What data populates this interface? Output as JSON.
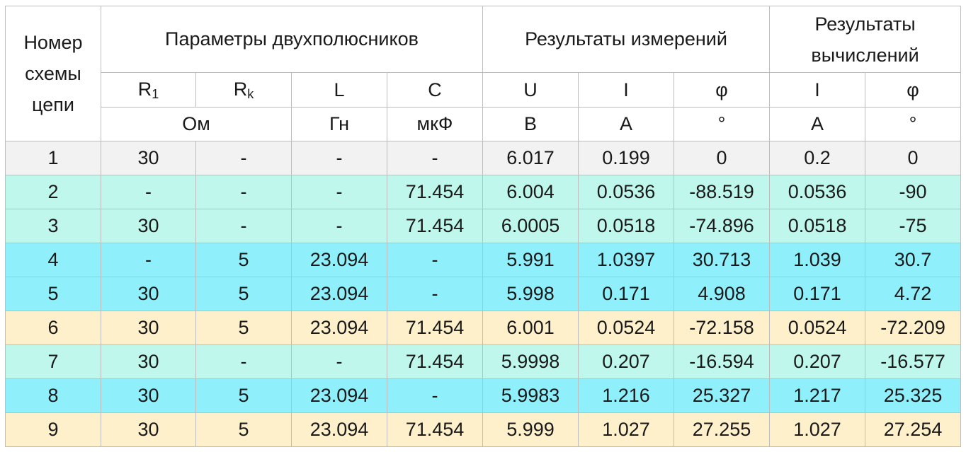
{
  "header": {
    "scheme_number": "Номер схемы цепи",
    "group_params": "Параметры двухполюсников",
    "group_measured": "Результаты измерений",
    "group_calculated": "Результаты вычислений",
    "col_r1_base": "R",
    "col_r1_sub": "1",
    "col_rk_base": "R",
    "col_rk_sub": "k",
    "col_l": "L",
    "col_c": "C",
    "col_u": "U",
    "col_i_meas": "I",
    "col_phi_meas": "φ",
    "col_i_calc": "I",
    "col_phi_calc": "φ",
    "unit_ohm": "Ом",
    "unit_l": "Гн",
    "unit_c": "мкФ",
    "unit_u": "В",
    "unit_i_meas": "А",
    "unit_phi_meas": "°",
    "unit_i_calc": "А",
    "unit_phi_calc": "°"
  },
  "row_colors": {
    "grey": "#f2f2f2",
    "mint": "#bff7ec",
    "cyan": "#8ff0fb",
    "cream": "#fff0cc"
  },
  "rows": [
    {
      "n": "1",
      "r1": "30",
      "rk": "-",
      "l": "-",
      "c": "-",
      "u": "6.017",
      "i_meas": "0.199",
      "phi_meas": "0",
      "i_calc": "0.2",
      "phi_calc": "0"
    },
    {
      "n": "2",
      "r1": "-",
      "rk": "-",
      "l": "-",
      "c": "71.454",
      "u": "6.004",
      "i_meas": "0.0536",
      "phi_meas": "-88.519",
      "i_calc": "0.0536",
      "phi_calc": "-90"
    },
    {
      "n": "3",
      "r1": "30",
      "rk": "-",
      "l": "-",
      "c": "71.454",
      "u": "6.0005",
      "i_meas": "0.0518",
      "phi_meas": "-74.896",
      "i_calc": "0.0518",
      "phi_calc": "-75"
    },
    {
      "n": "4",
      "r1": "-",
      "rk": "5",
      "l": "23.094",
      "c": "-",
      "u": "5.991",
      "i_meas": "1.0397",
      "phi_meas": "30.713",
      "i_calc": "1.039",
      "phi_calc": "30.7"
    },
    {
      "n": "5",
      "r1": "30",
      "rk": "5",
      "l": "23.094",
      "c": "-",
      "u": "5.998",
      "i_meas": "0.171",
      "phi_meas": "4.908",
      "i_calc": "0.171",
      "phi_calc": "4.72"
    },
    {
      "n": "6",
      "r1": "30",
      "rk": "5",
      "l": "23.094",
      "c": "71.454",
      "u": "6.001",
      "i_meas": "0.0524",
      "phi_meas": "-72.158",
      "i_calc": "0.0524",
      "phi_calc": "-72.209"
    },
    {
      "n": "7",
      "r1": "30",
      "rk": "-",
      "l": "-",
      "c": "71.454",
      "u": "5.9998",
      "i_meas": "0.207",
      "phi_meas": "-16.594",
      "i_calc": "0.207",
      "phi_calc": "-16.577"
    },
    {
      "n": "8",
      "r1": "30",
      "rk": "5",
      "l": "23.094",
      "c": "-",
      "u": "5.9983",
      "i_meas": "1.216",
      "phi_meas": "25.327",
      "i_calc": "1.217",
      "phi_calc": "25.325"
    },
    {
      "n": "9",
      "r1": "30",
      "rk": "5",
      "l": "23.094",
      "c": "71.454",
      "u": "5.999",
      "i_meas": "1.027",
      "phi_meas": "27.255",
      "i_calc": "1.027",
      "phi_calc": "27.254"
    }
  ]
}
